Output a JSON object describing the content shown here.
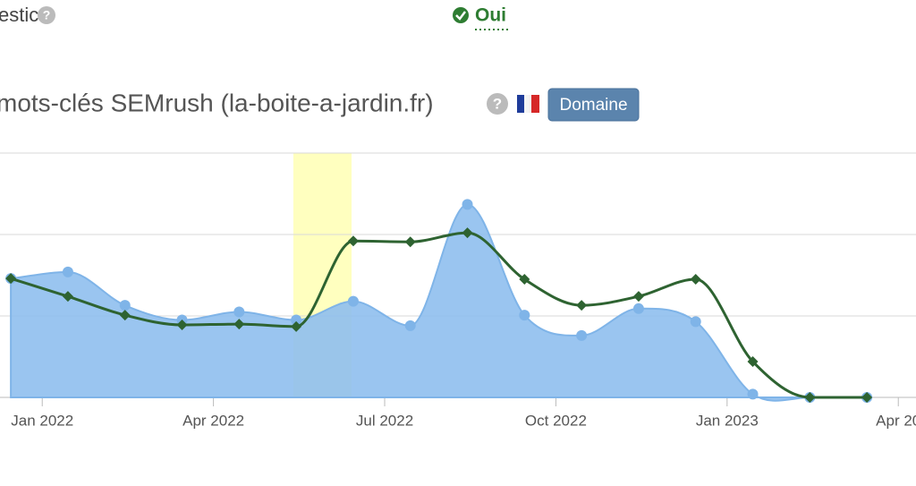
{
  "header": {
    "label": "estic",
    "status": "Oui",
    "title": "mots-clés SEMrush (la-boite-a-jardin.fr)",
    "button": "Domaine"
  },
  "chart_data": {
    "type": "line",
    "x": [
      -0.55,
      0.45,
      1.45,
      2.45,
      3.45,
      4.45,
      5.45,
      6.45,
      7.45,
      8.45,
      9.45,
      10.45,
      11.45,
      12.45,
      13.45,
      14.45
    ],
    "series": [
      {
        "type": "area",
        "color": "#8fbfee",
        "values": [
          1.46,
          1.54,
          1.13,
          0.95,
          1.05,
          0.95,
          1.18,
          0.88,
          2.37,
          1.01,
          0.76,
          1.09,
          0.93,
          0.04,
          0,
          0
        ]
      },
      {
        "type": "line",
        "color": "#2e6331",
        "values": [
          1.46,
          1.24,
          1.01,
          0.89,
          0.9,
          0.87,
          1.92,
          1.91,
          2.02,
          1.45,
          1.13,
          1.24,
          1.45,
          0.44,
          0,
          0
        ]
      }
    ],
    "band": {
      "from": 4.4,
      "to": 5.42,
      "color": "#ffffbf"
    },
    "xlim": [
      -0.74,
      15.31
    ],
    "xticks": [
      {
        "value": 0,
        "label": "Jan 2022"
      },
      {
        "value": 3,
        "label": "Apr 2022"
      },
      {
        "value": 6,
        "label": "Jul 2022"
      },
      {
        "value": 9,
        "label": "Oct 2022"
      },
      {
        "value": 12,
        "label": "Jan 2023"
      },
      {
        "value": 15,
        "label": "Apr 20"
      }
    ],
    "ylim": [
      0,
      3
    ],
    "yticks": [
      0,
      1,
      2,
      3
    ],
    "grid": true
  }
}
